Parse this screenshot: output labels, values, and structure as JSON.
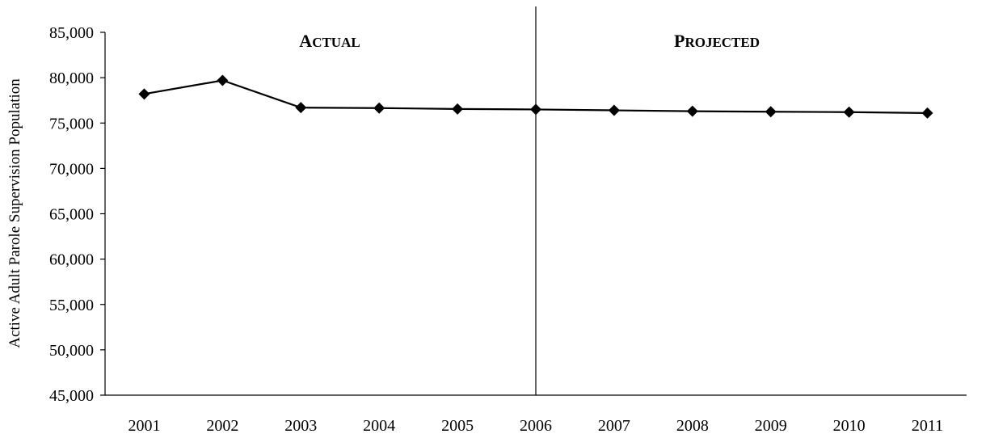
{
  "chart_data": {
    "type": "line",
    "title": "",
    "xlabel": "",
    "ylabel": "Active Adult Parole Supervision Population",
    "ylim": [
      45000,
      85000
    ],
    "y_ticks": [
      45000,
      50000,
      55000,
      60000,
      65000,
      70000,
      75000,
      80000,
      85000
    ],
    "y_tick_labels": [
      "45,000",
      "50,000",
      "55,000",
      "60,000",
      "65,000",
      "70,000",
      "75,000",
      "80,000",
      "85,000"
    ],
    "categories": [
      "2001",
      "2002",
      "2003",
      "2004",
      "2005",
      "2006",
      "2007",
      "2008",
      "2009",
      "2010",
      "2011"
    ],
    "series": [
      {
        "values": [
          78200,
          79700,
          76700,
          76650,
          76550,
          76500,
          76400,
          76300,
          76250,
          76200,
          76100
        ]
      }
    ],
    "divider_at": "2006",
    "regions": [
      {
        "label_initial": "A",
        "label_rest": "CTUAL"
      },
      {
        "label_initial": "P",
        "label_rest": "ROJECTED"
      }
    ],
    "grid": false,
    "marker": "diamond",
    "line_color": "#000000"
  }
}
